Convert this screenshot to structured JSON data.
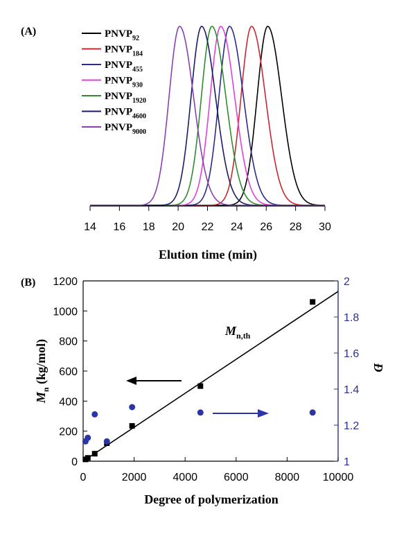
{
  "chart_data": [
    {
      "panel_label": "(A)",
      "type": "line",
      "xlabel": "Elution time (min)",
      "ylabel": "",
      "xlim": [
        14,
        30
      ],
      "xticks": [
        14,
        16,
        18,
        20,
        22,
        24,
        26,
        28,
        30
      ],
      "legend_position": "top-left",
      "series": [
        {
          "name": "PNVP",
          "sub": "92",
          "peak_x": 26.1,
          "color": "#000000"
        },
        {
          "name": "PNVP",
          "sub": "184",
          "peak_x": 25.0,
          "color": "#c8272d"
        },
        {
          "name": "PNVP",
          "sub": "455",
          "peak_x": 23.5,
          "color": "#2a2a8c"
        },
        {
          "name": "PNVP",
          "sub": "930",
          "peak_x": 22.9,
          "color": "#e040d8"
        },
        {
          "name": "PNVP",
          "sub": "1920",
          "peak_x": 22.3,
          "color": "#2e8b2e"
        },
        {
          "name": "PNVP",
          "sub": "4600",
          "peak_x": 21.6,
          "color": "#1a1a66"
        },
        {
          "name": "PNVP",
          "sub": "9000",
          "peak_x": 20.1,
          "color": "#8a3fb0"
        }
      ]
    },
    {
      "panel_label": "(B)",
      "type": "scatter",
      "xlabel": "Degree of polymerization",
      "ylabel_main": "M",
      "ylabel_sub": "n",
      "ylabel_rest": " (kg/mol)",
      "y2label": "Đ",
      "xlim": [
        0,
        10000
      ],
      "ylim": [
        0,
        1200
      ],
      "y2lim": [
        1,
        2
      ],
      "xticks": [
        0,
        2000,
        4000,
        6000,
        8000,
        10000
      ],
      "yticks": [
        0,
        200,
        400,
        600,
        800,
        1000,
        1200
      ],
      "y2ticks": [
        "1",
        "1.2",
        "1.4",
        "1.6",
        "1.8",
        "2"
      ],
      "mn_points": [
        {
          "x": 92,
          "y": 12
        },
        {
          "x": 184,
          "y": 22
        },
        {
          "x": 455,
          "y": 50
        },
        {
          "x": 930,
          "y": 120
        },
        {
          "x": 1920,
          "y": 235
        },
        {
          "x": 4600,
          "y": 500
        },
        {
          "x": 9000,
          "y": 1060
        }
      ],
      "dispersity_points": [
        {
          "x": 92,
          "y": 1.11
        },
        {
          "x": 184,
          "y": 1.13
        },
        {
          "x": 455,
          "y": 1.26
        },
        {
          "x": 930,
          "y": 1.11
        },
        {
          "x": 1920,
          "y": 1.3
        },
        {
          "x": 4600,
          "y": 1.27
        },
        {
          "x": 9000,
          "y": 1.27
        }
      ],
      "theory_line": {
        "x": [
          0,
          10000
        ],
        "y": [
          0,
          1130
        ],
        "label_main": "M",
        "label_sub": "n,th"
      },
      "colors": {
        "mn": "#000000",
        "dispersity": "#2b35a8",
        "axis2": "#2b2f8f"
      }
    }
  ]
}
